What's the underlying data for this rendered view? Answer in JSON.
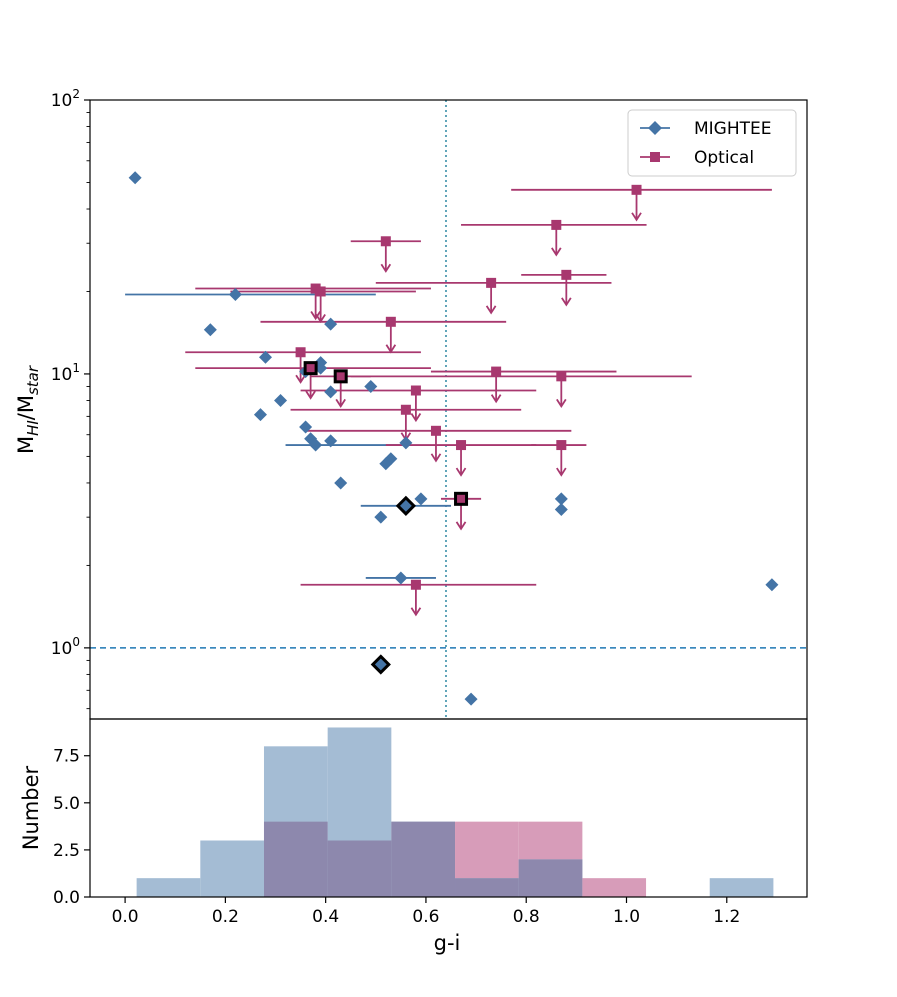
{
  "chart_data": [
    {
      "type": "scatter",
      "xlabel": "",
      "ylabel_base": "M",
      "ylabel_sub1": "HI",
      "ylabel_slash": "/M",
      "ylabel_sub2": "star",
      "yscale": "log",
      "ylim": [
        0.55,
        100
      ],
      "xlim": [
        -0.07,
        1.36
      ],
      "yticks": [
        {
          "base": "10",
          "exp": "0",
          "value": 1
        },
        {
          "base": "10",
          "exp": "1",
          "value": 10
        },
        {
          "base": "10",
          "exp": "2",
          "value": 100
        }
      ],
      "reference_lines": {
        "hline_y": 1.0,
        "hline_style": "dashed",
        "vline_x": 0.64,
        "vline_style": "dotted"
      },
      "legend": {
        "position": "top-right",
        "entries": [
          "MIGHTEE",
          "Optical"
        ]
      },
      "series": [
        {
          "name": "MIGHTEE",
          "marker": "diamond",
          "color": "#4474a6",
          "points": [
            {
              "x": 0.02,
              "y": 52
            },
            {
              "x": 0.22,
              "y": 19.5,
              "xerr": [
                0.0,
                0.5
              ]
            },
            {
              "x": 0.17,
              "y": 14.5
            },
            {
              "x": 0.41,
              "y": 15.2
            },
            {
              "x": 0.28,
              "y": 11.5
            },
            {
              "x": 0.39,
              "y": 10.5
            },
            {
              "x": 0.39,
              "y": 11.0
            },
            {
              "x": 0.36,
              "y": 10.2
            },
            {
              "x": 0.49,
              "y": 9.0
            },
            {
              "x": 0.41,
              "y": 8.6
            },
            {
              "x": 0.31,
              "y": 8.0
            },
            {
              "x": 0.27,
              "y": 7.1
            },
            {
              "x": 0.36,
              "y": 6.4
            },
            {
              "x": 0.37,
              "y": 5.8
            },
            {
              "x": 0.38,
              "y": 5.5,
              "xerr": [
                0.32,
                0.55
              ]
            },
            {
              "x": 0.41,
              "y": 5.7
            },
            {
              "x": 0.56,
              "y": 5.6
            },
            {
              "x": 0.53,
              "y": 4.9
            },
            {
              "x": 0.52,
              "y": 4.7
            },
            {
              "x": 0.43,
              "y": 4.0
            },
            {
              "x": 0.59,
              "y": 3.5
            },
            {
              "x": 0.87,
              "y": 3.5
            },
            {
              "x": 0.87,
              "y": 3.2
            },
            {
              "x": 0.56,
              "y": 3.3,
              "xerr": [
                0.47,
                0.65
              ],
              "highlight": true
            },
            {
              "x": 0.51,
              "y": 3.0
            },
            {
              "x": 0.55,
              "y": 1.8,
              "xerr": [
                0.48,
                0.62
              ]
            },
            {
              "x": 1.29,
              "y": 1.7
            },
            {
              "x": 0.51,
              "y": 0.87,
              "highlight": true
            },
            {
              "x": 0.69,
              "y": 0.65
            }
          ]
        },
        {
          "name": "Optical",
          "marker": "square",
          "color": "#a8386f",
          "upper_limits": true,
          "points": [
            {
              "x": 1.02,
              "y": 47,
              "xerr": [
                0.77,
                1.29
              ]
            },
            {
              "x": 0.86,
              "y": 35,
              "xerr": [
                0.67,
                1.04
              ]
            },
            {
              "x": 0.52,
              "y": 30.5,
              "xerr": [
                0.45,
                0.59
              ]
            },
            {
              "x": 0.73,
              "y": 21.5,
              "xerr": [
                0.5,
                0.97
              ]
            },
            {
              "x": 0.88,
              "y": 23,
              "xerr": [
                0.79,
                0.96
              ]
            },
            {
              "x": 0.38,
              "y": 20.5,
              "xerr": [
                0.14,
                0.61
              ]
            },
            {
              "x": 0.39,
              "y": 20.0,
              "xerr": [
                0.21,
                0.58
              ]
            },
            {
              "x": 0.53,
              "y": 15.5,
              "xerr": [
                0.27,
                0.76
              ]
            },
            {
              "x": 0.35,
              "y": 12.0,
              "xerr": [
                0.12,
                0.59
              ]
            },
            {
              "x": 0.37,
              "y": 10.5,
              "xerr": [
                0.14,
                0.61
              ],
              "highlight": true
            },
            {
              "x": 0.43,
              "y": 9.8,
              "xerr": [
                0.37,
                0.49
              ],
              "highlight": true
            },
            {
              "x": 0.74,
              "y": 10.2,
              "xerr": [
                0.61,
                0.98
              ]
            },
            {
              "x": 0.87,
              "y": 9.8,
              "xerr": [
                0.45,
                1.13
              ]
            },
            {
              "x": 0.58,
              "y": 8.7,
              "xerr": [
                0.35,
                0.82
              ]
            },
            {
              "x": 0.56,
              "y": 7.4,
              "xerr": [
                0.33,
                0.79
              ]
            },
            {
              "x": 0.62,
              "y": 6.2,
              "xerr": [
                0.36,
                0.89
              ]
            },
            {
              "x": 0.67,
              "y": 5.5,
              "xerr": [
                0.52,
                0.82
              ]
            },
            {
              "x": 0.87,
              "y": 5.5,
              "xerr": [
                0.81,
                0.92
              ]
            },
            {
              "x": 0.67,
              "y": 3.5,
              "xerr": [
                0.63,
                0.71
              ],
              "highlight": true
            },
            {
              "x": 0.58,
              "y": 1.7,
              "xerr": [
                0.35,
                0.82
              ]
            }
          ]
        }
      ]
    },
    {
      "type": "bar",
      "xlabel": "g-i",
      "ylabel": "Number",
      "xlim": [
        -0.07,
        1.36
      ],
      "ylim": [
        0,
        9.45
      ],
      "xticks": [
        "0.0",
        "0.2",
        "0.4",
        "0.6",
        "0.8",
        "1.0",
        "1.2"
      ],
      "yticks": [
        "0.0",
        "2.5",
        "5.0",
        "7.5"
      ],
      "series": [
        {
          "name": "MIGHTEE",
          "color": "#4474a6",
          "bins": [
            {
              "x0": 0.023,
              "x1": 0.15,
              "count": 1
            },
            {
              "x0": 0.15,
              "x1": 0.277,
              "count": 3
            },
            {
              "x0": 0.277,
              "x1": 0.404,
              "count": 8
            },
            {
              "x0": 0.404,
              "x1": 0.531,
              "count": 9
            },
            {
              "x0": 0.531,
              "x1": 0.658,
              "count": 4
            },
            {
              "x0": 0.658,
              "x1": 0.785,
              "count": 1
            },
            {
              "x0": 0.785,
              "x1": 0.912,
              "count": 2
            },
            {
              "x0": 0.912,
              "x1": 1.039,
              "count": 0
            },
            {
              "x0": 1.039,
              "x1": 1.166,
              "count": 0
            },
            {
              "x0": 1.166,
              "x1": 1.293,
              "count": 1
            }
          ]
        },
        {
          "name": "Optical",
          "color": "#a8386f",
          "bins": [
            {
              "x0": 0.277,
              "x1": 0.404,
              "count": 4
            },
            {
              "x0": 0.404,
              "x1": 0.531,
              "count": 3
            },
            {
              "x0": 0.531,
              "x1": 0.658,
              "count": 4
            },
            {
              "x0": 0.658,
              "x1": 0.785,
              "count": 4
            },
            {
              "x0": 0.785,
              "x1": 0.912,
              "count": 4
            },
            {
              "x0": 0.912,
              "x1": 1.039,
              "count": 1
            }
          ]
        }
      ]
    }
  ],
  "colors": {
    "mightee": "#4474a6",
    "optical": "#a8386f",
    "hline": "#1f77b4",
    "vline": "#3a8fa8",
    "histMightee": "#a4bcd4",
    "histOptical": "#d79cb9",
    "histOverlap": "#8d88ad"
  }
}
